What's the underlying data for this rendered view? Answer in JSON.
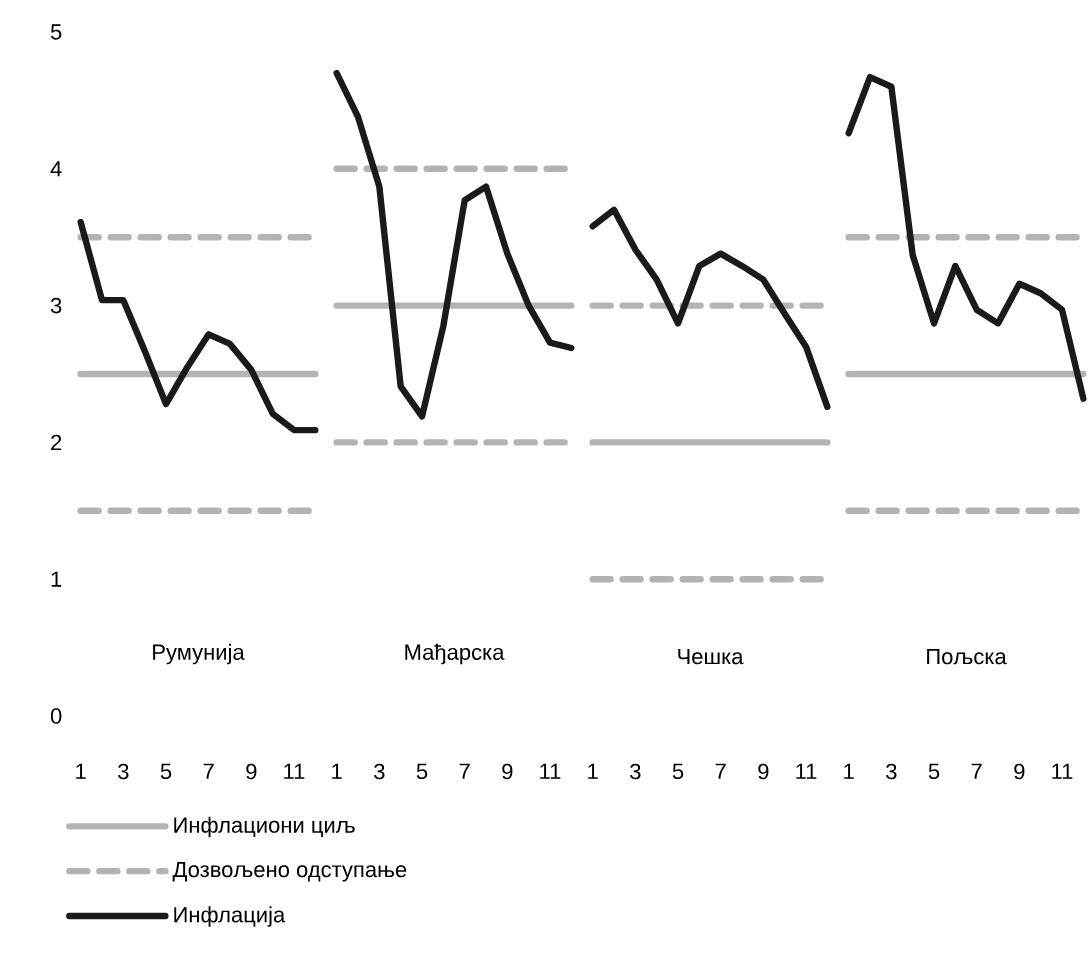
{
  "chart_data": [
    {
      "type": "line",
      "title": "Румунија",
      "xlim": [
        1,
        12
      ],
      "xticks": [
        1,
        3,
        5,
        7,
        9,
        11
      ],
      "ylim": [
        0,
        5
      ],
      "yticks": [
        0,
        1,
        2,
        3,
        4,
        5
      ],
      "legend": "bottom",
      "x": [
        1,
        2,
        3,
        4,
        5,
        6,
        7,
        8,
        9,
        10,
        11,
        12
      ],
      "series": [
        {
          "name": "Инфлациони циљ",
          "color": "#b3b3b3",
          "values": [
            2.5,
            2.5,
            2.5,
            2.5,
            2.5,
            2.5,
            2.5,
            2.5,
            2.5,
            2.5,
            2.5,
            2.5
          ]
        },
        {
          "name": "Дозвољено одступање",
          "color": "#b3b3b3",
          "line_style": "dashed",
          "values": [
            3.5,
            3.5,
            3.5,
            3.5,
            3.5,
            3.5,
            3.5,
            3.5,
            3.5,
            3.5,
            3.5,
            3.5
          ]
        },
        {
          "color": "#b3b3b3",
          "line_style": "dashed",
          "values": [
            1.5,
            1.5,
            1.5,
            1.5,
            1.5,
            1.5,
            1.5,
            1.5,
            1.5,
            1.5,
            1.5,
            1.5
          ]
        },
        {
          "name": "Инфлација",
          "color": "#1a1a1a",
          "values": [
            3.61,
            3.04,
            3.04,
            2.67,
            2.28,
            2.55,
            2.79,
            2.72,
            2.53,
            2.21,
            2.09,
            2.09
          ]
        }
      ]
    },
    {
      "type": "line",
      "title": "Мађарска",
      "xlim": [
        1,
        12
      ],
      "xticks": [
        1,
        3,
        5,
        7,
        9,
        11
      ],
      "ylim": [
        0,
        5
      ],
      "yticks": [
        0,
        1,
        2,
        3,
        4,
        5
      ],
      "tick_labels": "x",
      "x": [
        1,
        2,
        3,
        4,
        5,
        6,
        7,
        8,
        9,
        10,
        11,
        12
      ],
      "series": [
        {
          "color": "#b3b3b3",
          "values": [
            3,
            3,
            3,
            3,
            3,
            3,
            3,
            3,
            3,
            3,
            3,
            3
          ]
        },
        {
          "color": "#b3b3b3",
          "line_style": "dashed",
          "values": [
            4,
            4,
            4,
            4,
            4,
            4,
            4,
            4,
            4,
            4,
            4,
            4
          ]
        },
        {
          "color": "#b3b3b3",
          "line_style": "dashed",
          "values": [
            2,
            2,
            2,
            2,
            2,
            2,
            2,
            2,
            2,
            2,
            2,
            2
          ]
        },
        {
          "color": "#1a1a1a",
          "values": [
            4.7,
            4.38,
            3.87,
            2.41,
            2.19,
            2.85,
            3.77,
            3.87,
            3.38,
            3.0,
            2.73,
            2.69
          ]
        }
      ]
    },
    {
      "type": "line",
      "title": "Чешка",
      "xlim": [
        1,
        12
      ],
      "xticks": [
        1,
        3,
        5,
        7,
        9,
        11
      ],
      "ylim": [
        0,
        5
      ],
      "yticks": [
        0,
        1,
        2,
        3,
        4,
        5
      ],
      "tick_labels": "x",
      "x": [
        1,
        2,
        3,
        4,
        5,
        6,
        7,
        8,
        9,
        10,
        11,
        12
      ],
      "series": [
        {
          "color": "#b3b3b3",
          "values": [
            2,
            2,
            2,
            2,
            2,
            2,
            2,
            2,
            2,
            2,
            2,
            2
          ]
        },
        {
          "color": "#b3b3b3",
          "line_style": "dashed",
          "values": [
            3,
            3,
            3,
            3,
            3,
            3,
            3,
            3,
            3,
            3,
            3,
            3
          ]
        },
        {
          "color": "#b3b3b3",
          "line_style": "dashed",
          "values": [
            1,
            1,
            1,
            1,
            1,
            1,
            1,
            1,
            1,
            1,
            1,
            1
          ]
        },
        {
          "color": "#1a1a1a",
          "values": [
            3.58,
            3.7,
            3.41,
            3.19,
            2.87,
            3.29,
            3.38,
            3.29,
            3.19,
            2.94,
            2.7,
            2.26
          ]
        }
      ]
    },
    {
      "type": "line",
      "title": "Пољска",
      "xlim": [
        1,
        12
      ],
      "xticks": [
        1,
        3,
        5,
        7,
        9,
        11
      ],
      "ylim": [
        0,
        5
      ],
      "yticks": [
        0,
        1,
        2,
        3,
        4,
        5
      ],
      "tick_labels": "x",
      "x": [
        1,
        2,
        3,
        4,
        5,
        6,
        7,
        8,
        9,
        10,
        11,
        12
      ],
      "series": [
        {
          "color": "#b3b3b3",
          "values": [
            2.5,
            2.5,
            2.5,
            2.5,
            2.5,
            2.5,
            2.5,
            2.5,
            2.5,
            2.5,
            2.5,
            2.5
          ]
        },
        {
          "color": "#b3b3b3",
          "line_style": "dashed",
          "values": [
            3.5,
            3.5,
            3.5,
            3.5,
            3.5,
            3.5,
            3.5,
            3.5,
            3.5,
            3.5,
            3.5,
            3.5
          ]
        },
        {
          "color": "#b3b3b3",
          "line_style": "dashed",
          "values": [
            1.5,
            1.5,
            1.5,
            1.5,
            1.5,
            1.5,
            1.5,
            1.5,
            1.5,
            1.5,
            1.5,
            1.5
          ]
        },
        {
          "color": "#1a1a1a",
          "values": [
            4.26,
            4.67,
            4.6,
            3.37,
            2.87,
            3.29,
            2.97,
            2.87,
            3.16,
            3.09,
            2.97,
            2.32
          ]
        }
      ]
    }
  ]
}
